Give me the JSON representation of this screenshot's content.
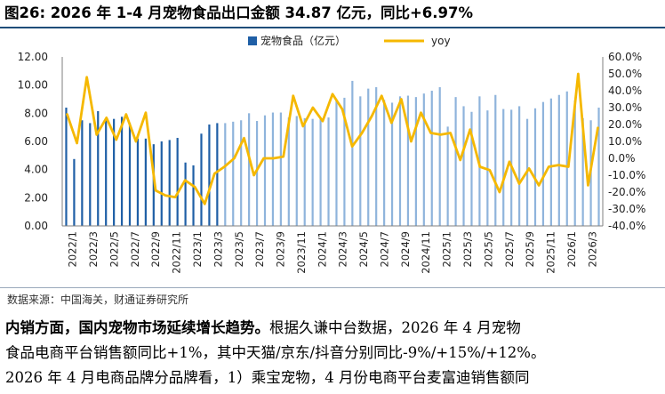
{
  "header": {
    "title": "图26: 2026 年 1-4 月宠物食品出口金额 34.87 亿元，同比+6.97%"
  },
  "footer": {
    "source": "数据来源：中国海关，财通证券研究所"
  },
  "paragraph": {
    "line1_bold": "内销方面，国内宠物市场延续增长趋势。",
    "line1_rest": "根据久谦中台数据，2026 年 4 月宠物",
    "line2": "食品电商平台销售额同比+1%，其中天猫/京东/抖音分别同比-9%/+15%/+12%。",
    "line3": "2026 年 4 月电商品牌分品牌看，1）乘宝宠物，4 月份电商平台麦富迪销售额同"
  },
  "colors": {
    "bar_dark": "#1f5fa6",
    "bar_light": "#8fb4dc",
    "line": "#f5b800"
  },
  "chart_data": {
    "type": "bar",
    "legend_position": "top-center",
    "grid": false,
    "series": [
      {
        "name": "宠物食品（亿元）",
        "type": "bar",
        "axis": "left",
        "values": [
          8.4,
          4.75,
          7.5,
          7.3,
          8.15,
          7.5,
          7.6,
          7.75,
          7.3,
          6.2,
          6.2,
          5.8,
          6.0,
          6.1,
          6.25,
          4.5,
          4.3,
          6.55,
          7.2,
          7.3,
          7.3,
          7.4,
          7.5,
          8.0,
          7.45,
          7.85,
          8.05,
          8.05,
          7.7,
          7.8,
          7.65,
          7.6,
          7.6,
          7.7,
          9.0,
          9.1,
          10.3,
          9.2,
          9.75,
          9.85,
          8.95,
          8.75,
          9.2,
          9.25,
          9.15,
          9.4,
          9.6,
          9.85,
          7.05,
          9.15,
          8.5,
          8.1,
          9.2,
          8.2,
          9.3,
          8.3,
          8.25,
          8.5,
          7.6,
          8.35,
          8.8,
          9.05,
          9.3,
          9.55,
          8.9,
          7.65,
          7.5,
          8.4
        ]
      },
      {
        "name": "yoy",
        "type": "line",
        "axis": "right",
        "values": [
          26,
          9,
          48,
          14,
          24,
          11,
          26,
          10,
          27,
          -19,
          -22,
          -23,
          -13,
          -17,
          -27,
          -9,
          -5,
          0,
          12,
          -10,
          0,
          0,
          1,
          37,
          19,
          30,
          22,
          38,
          29,
          7,
          15,
          25,
          37,
          21,
          35,
          10,
          27,
          15,
          14,
          15,
          -1,
          17,
          -5,
          -7,
          -20,
          -2,
          -15,
          -6,
          -16,
          -5,
          -4,
          -5,
          50,
          -16,
          18
        ]
      }
    ],
    "x_tick_labels": [
      "2022/1",
      "2022/3",
      "2022/5",
      "2022/7",
      "2022/9",
      "2022/11",
      "2023/1",
      "2023/3",
      "2023/5",
      "2023/7",
      "2023/9",
      "2023/11",
      "2024/1",
      "2024/3",
      "2024/5",
      "2024/7",
      "2024/9",
      "2024/11",
      "2025/1",
      "2025/3",
      "2025/5",
      "2025/7",
      "2025/9",
      "2025/11",
      "2026/1",
      "2026/3"
    ],
    "y_left": {
      "min": 0,
      "max": 12,
      "ticks": [
        "0.00",
        "2.00",
        "4.00",
        "6.00",
        "8.00",
        "10.00",
        "12.00"
      ]
    },
    "y_right": {
      "min": -40,
      "max": 60,
      "ticks": [
        "-40.0%",
        "-30.0%",
        "-20.0%",
        "-10.0%",
        "0.0%",
        "10.0%",
        "20.0%",
        "30.0%",
        "40.0%",
        "50.0%",
        "60.0%"
      ]
    }
  }
}
